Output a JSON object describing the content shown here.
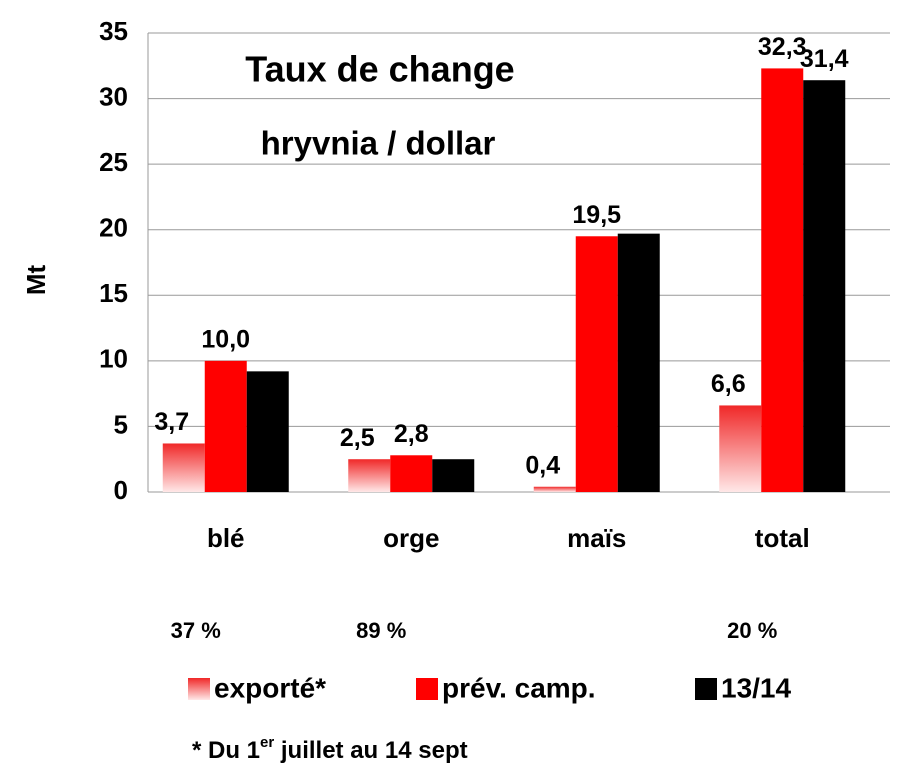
{
  "chart_data": {
    "type": "bar",
    "annotation_box": [
      "Taux de change",
      "hryvnia / dollar"
    ],
    "ylabel": "Mt",
    "categories": [
      "blé",
      "orge",
      "maïs",
      "total"
    ],
    "series": [
      {
        "name": "exporté*",
        "color": "#f02828",
        "values": [
          3.7,
          2.5,
          0.4,
          6.6
        ],
        "value_labels": [
          "3,7",
          "2,5",
          "0,4",
          "6,6"
        ]
      },
      {
        "name": "prév. camp.",
        "color": "#ff0000",
        "values": [
          10.0,
          2.8,
          19.5,
          32.3
        ],
        "value_labels": [
          "10,0",
          "2,8",
          "19,5",
          "32,3"
        ]
      },
      {
        "name": "13/14",
        "color": "#000000",
        "values": [
          9.2,
          2.5,
          19.7,
          31.4
        ],
        "value_labels": [
          null,
          null,
          null,
          "31,4"
        ]
      }
    ],
    "ylim": [
      0,
      35
    ],
    "yticks": [
      0,
      5,
      10,
      15,
      20,
      25,
      30,
      35
    ],
    "grid": true,
    "annotations": [
      "37 %",
      "89 %",
      null,
      "20 %"
    ],
    "footnote": [
      "* Du 1",
      "er",
      " juillet au 14 sept"
    ]
  }
}
